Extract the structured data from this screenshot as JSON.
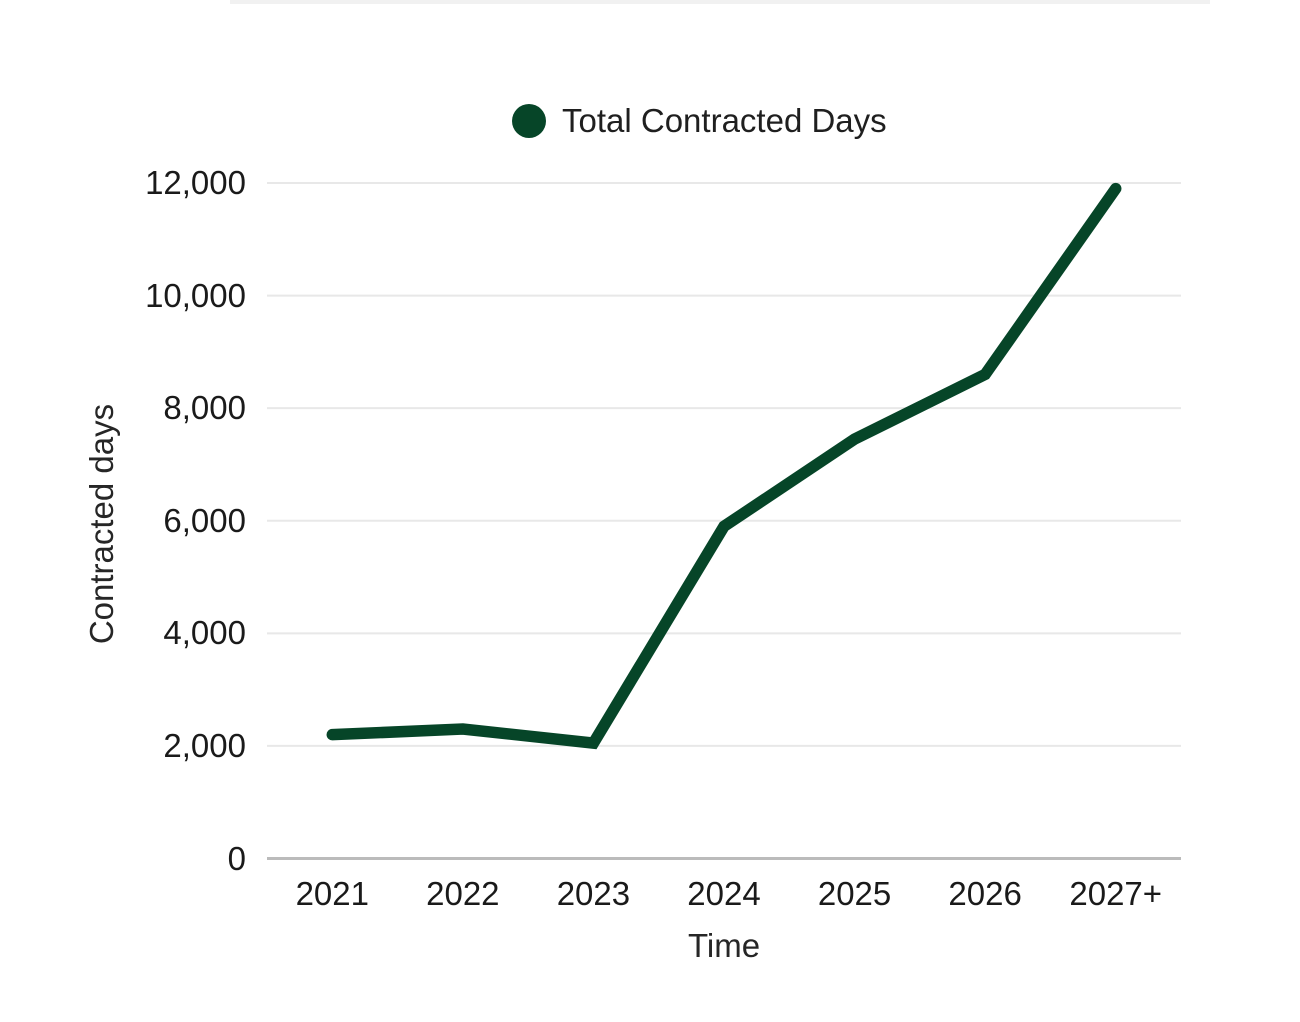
{
  "chart_data": {
    "type": "line",
    "legend_position": "top",
    "grid": "horizontal",
    "categories": [
      "2021",
      "2022",
      "2023",
      "2024",
      "2025",
      "2026",
      "2027+"
    ],
    "series": [
      {
        "name": "Total Contracted Days",
        "values": [
          2200,
          2300,
          2050,
          5900,
          7450,
          8600,
          11900
        ],
        "color": "#064528"
      }
    ],
    "xlabel": "Time",
    "ylabel": "Contracted days",
    "ylim": [
      0,
      12000
    ],
    "yticks": [
      0,
      2000,
      4000,
      6000,
      8000,
      10000,
      12000
    ],
    "ytick_labels": [
      "0",
      "2,000",
      "4,000",
      "6,000",
      "8,000",
      "10,000",
      "12,000"
    ],
    "colors": {
      "series_line": "#064528",
      "gridline": "#e8e8e8",
      "axis_line": "#bbbbbb",
      "tick_text": "#1a1a1a",
      "legend_text": "#1f1f1f"
    }
  }
}
